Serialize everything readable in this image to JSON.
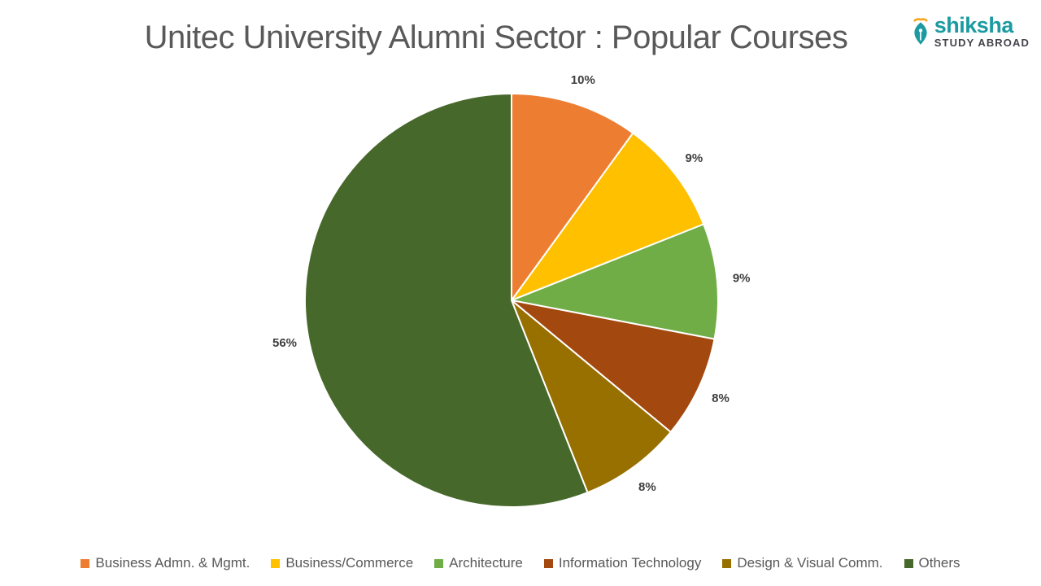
{
  "title": "Unitec University Alumni Sector : Popular Courses",
  "logo": {
    "brand": "shiksha",
    "tagline": "STUDY ABROAD",
    "icon": "pen-nib-icon",
    "brand_color": "#1B9BA1",
    "tagline_color": "#45444C",
    "accent_color": "#F5A623"
  },
  "colors": {
    "background": "#FFFFFF",
    "title_text": "#595959",
    "percent_label_text": "#3F3F3F",
    "legend_text": "#595959",
    "slice_border": "#FFFFFF"
  },
  "chart_data": {
    "type": "pie",
    "title": "Unitec University Alumni Sector : Popular Courses",
    "start_angle_deg": 0,
    "direction": "clockwise",
    "legend_position": "bottom",
    "labels": "outside-percent",
    "slices": [
      {
        "label": "Business Admn. & Mgmt.",
        "value": 10,
        "display": "10%",
        "color": "#ED7D31"
      },
      {
        "label": "Business/Commerce",
        "value": 9,
        "display": "9%",
        "color": "#FFC000"
      },
      {
        "label": "Architecture",
        "value": 9,
        "display": "9%",
        "color": "#70AD47"
      },
      {
        "label": "Information Technology",
        "value": 8,
        "display": "8%",
        "color": "#A3480E"
      },
      {
        "label": "Design & Visual Comm.",
        "value": 8,
        "display": "8%",
        "color": "#987000"
      },
      {
        "label": "Others",
        "value": 56,
        "display": "56%",
        "color": "#47682B"
      }
    ]
  }
}
